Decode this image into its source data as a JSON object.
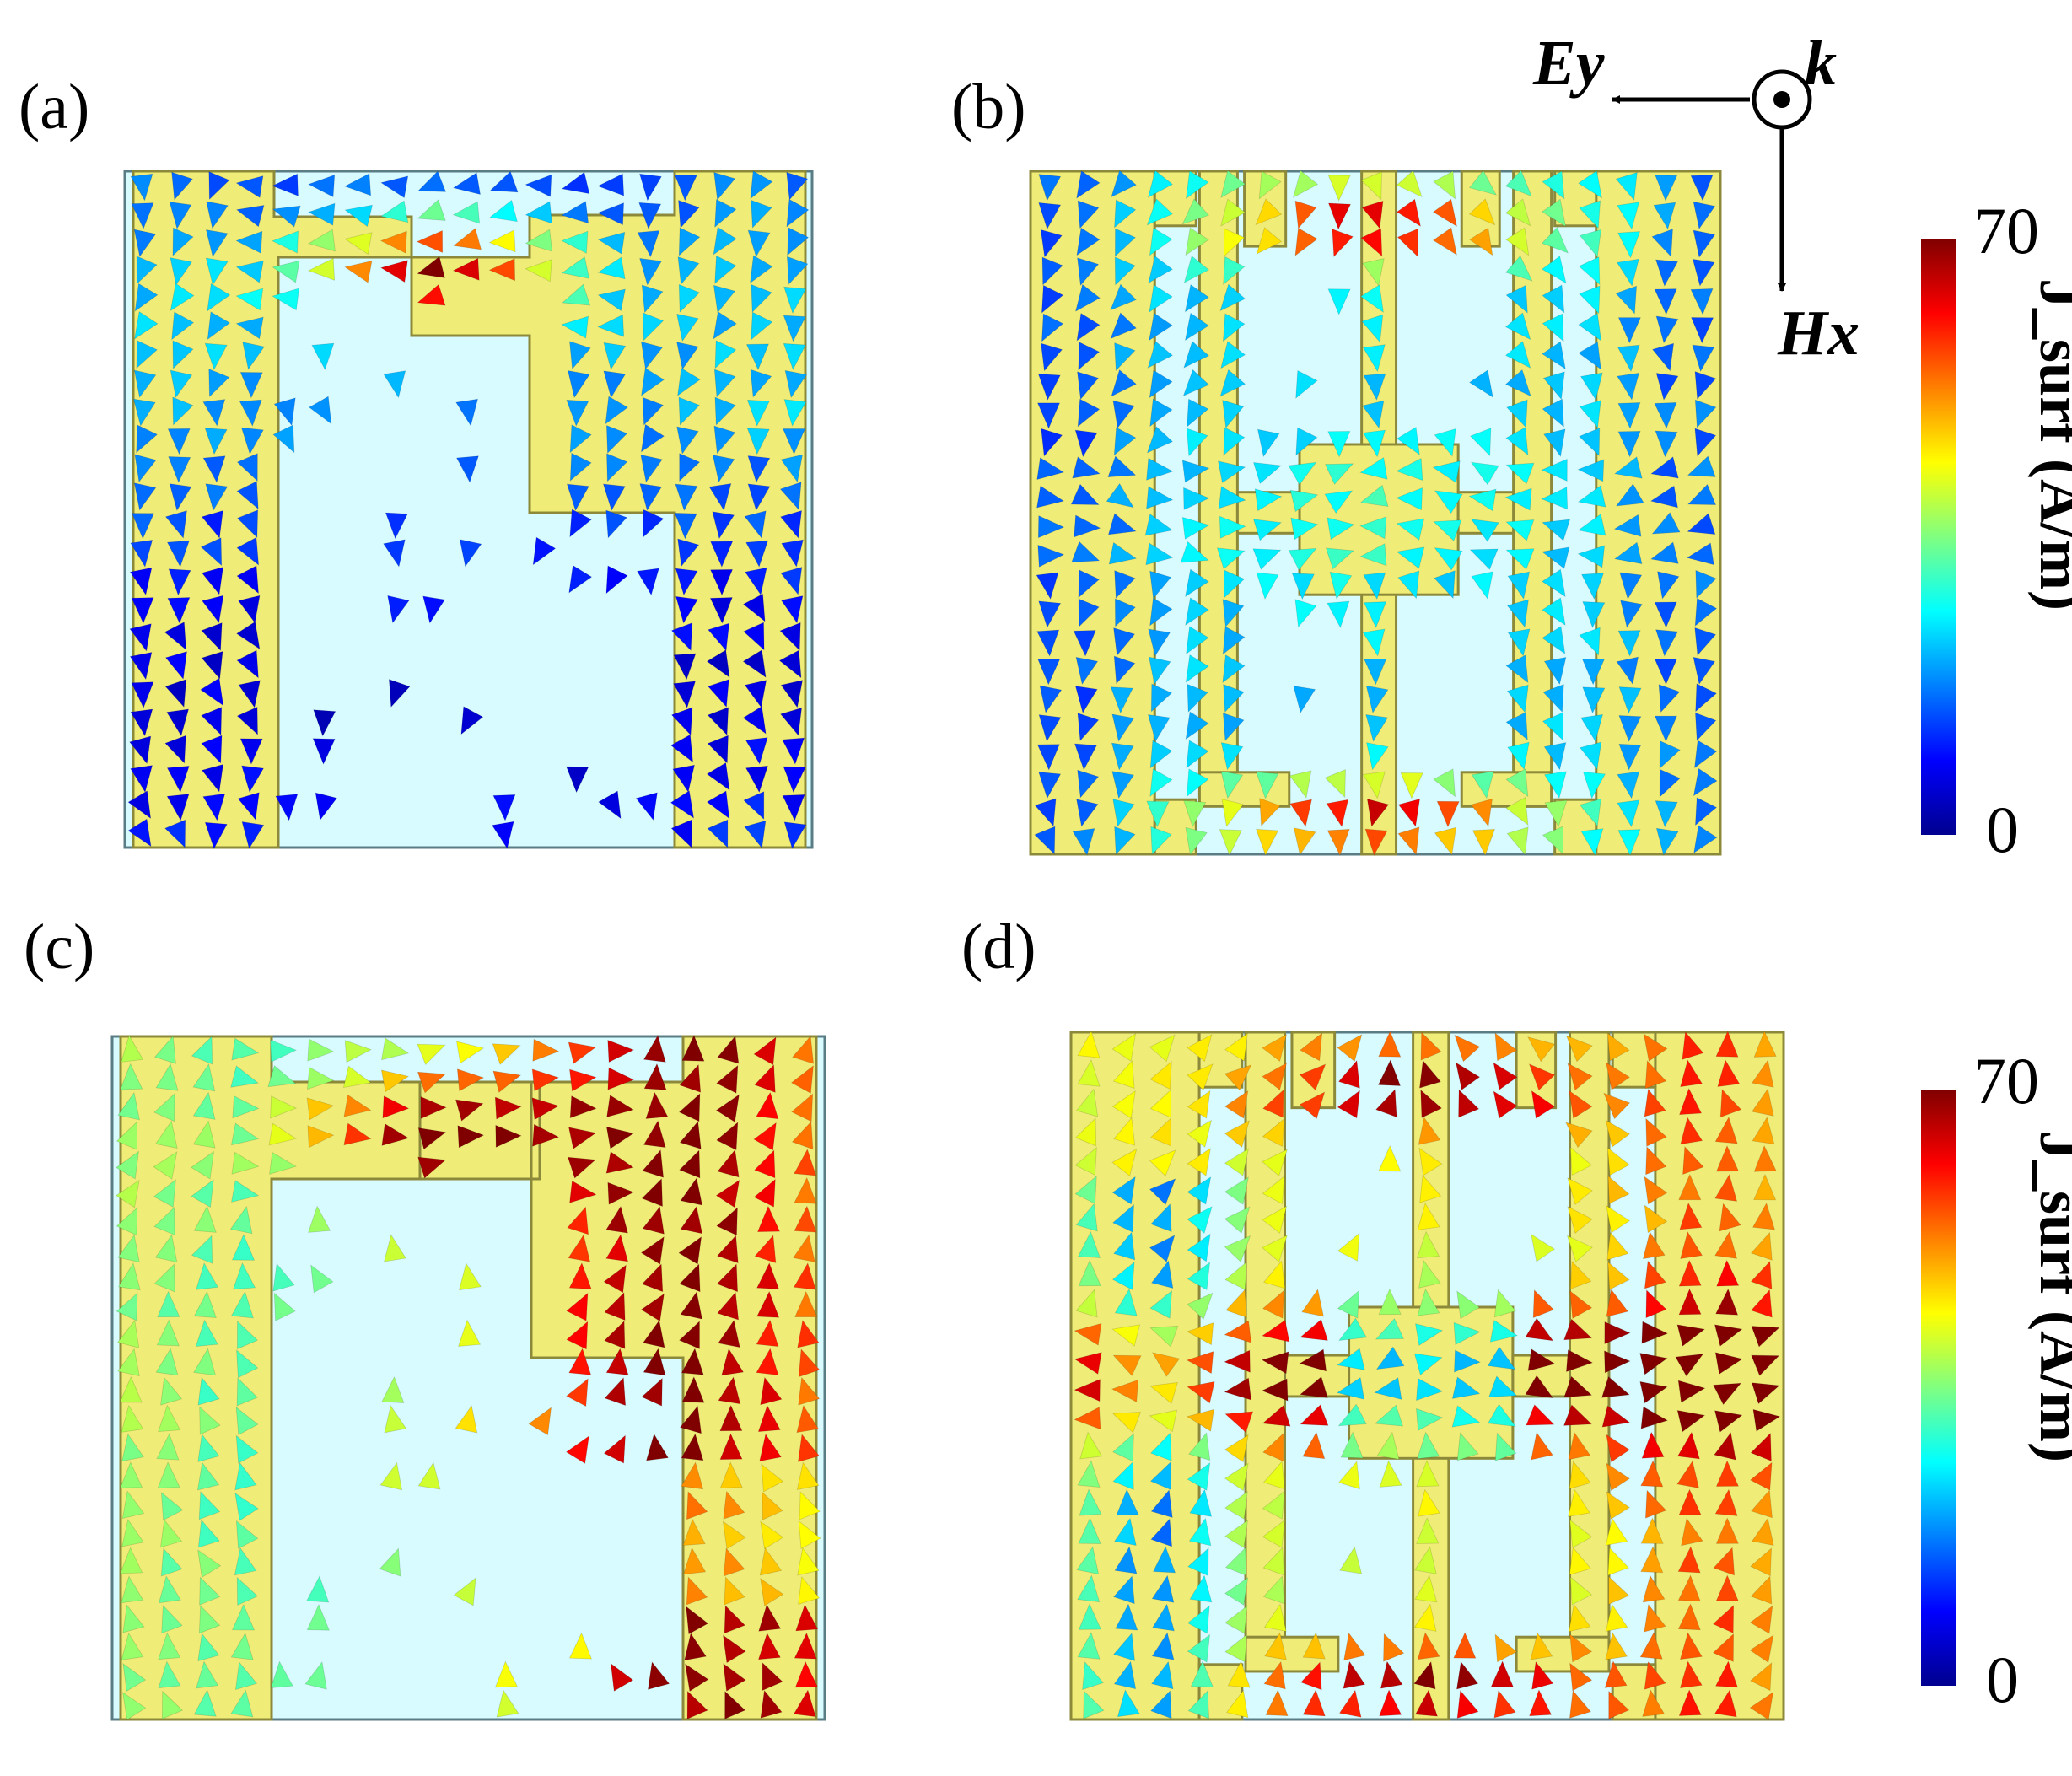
{
  "panels": [
    {
      "label": "(a)",
      "design": "gamma",
      "scheme": "low"
    },
    {
      "label": "(b)",
      "design": "h",
      "scheme": "low"
    },
    {
      "label": "(c)",
      "design": "gamma",
      "scheme": "high"
    },
    {
      "label": "(d)",
      "design": "h",
      "scheme": "high"
    }
  ],
  "colorbar": {
    "title": "J_surf (A/m)",
    "max_label": "70",
    "min_label": "0",
    "min": 0,
    "max": 70,
    "colormap": [
      "#00008f",
      "#0000ff",
      "#0080ff",
      "#00ffff",
      "#80ff80",
      "#ffff00",
      "#ff8000",
      "#ff0000",
      "#800000"
    ]
  },
  "axes": {
    "e_label": "Ey",
    "h_label": "Hx",
    "k_label": "k"
  },
  "colors": {
    "substrate": "#d8fbff",
    "metal": "#f0ec78",
    "metal_edge": "#8c8a3a",
    "cell_edge": "#5a7d85"
  }
}
